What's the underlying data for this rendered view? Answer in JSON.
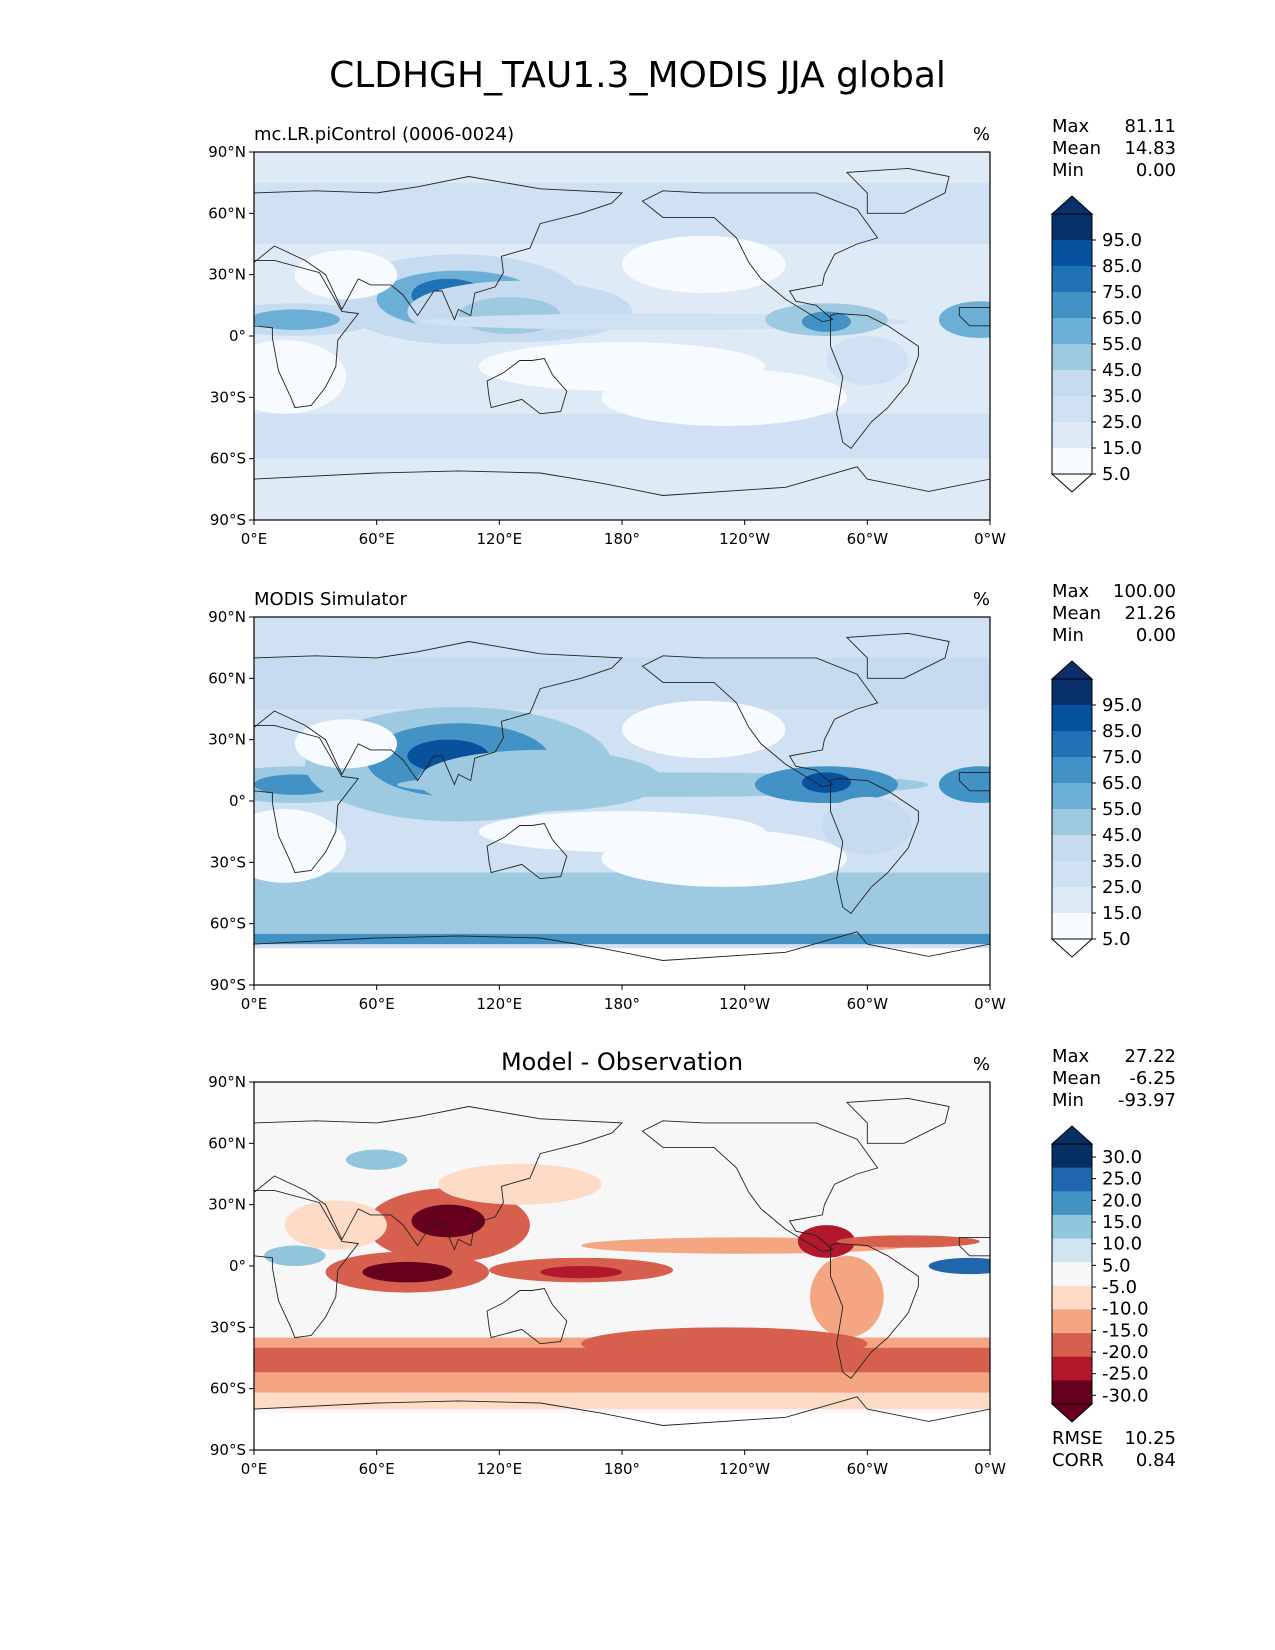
{
  "title": "CLDHGH_TAU1.3_MODIS JJA global",
  "colors": {
    "blues": [
      "#f7fbff",
      "#deebf7",
      "#cfe1f2",
      "#c6dbef",
      "#9ecae1",
      "#6baed6",
      "#4292c6",
      "#2171b5",
      "#08519c",
      "#08306b"
    ],
    "diff": [
      "#67001f",
      "#b2182b",
      "#d6604d",
      "#f4a582",
      "#fddbc7",
      "#f7f7f7",
      "#d1e5f0",
      "#92c5de",
      "#4393c3",
      "#2166ac",
      "#053061"
    ]
  },
  "chart_data": [
    {
      "type": "heatmap",
      "panel_title": "mc.LR.piControl (0006-0024)",
      "units": "%",
      "stats": {
        "max_label": "Max",
        "max": "81.11",
        "mean_label": "Mean",
        "mean": "14.83",
        "min_label": "Min",
        "min": "0.00"
      },
      "colorbar_ticks": [
        "95.0",
        "85.0",
        "75.0",
        "65.0",
        "55.0",
        "45.0",
        "35.0",
        "25.0",
        "15.0",
        "5.0"
      ],
      "x_ticks": [
        "0°E",
        "60°E",
        "120°E",
        "180°",
        "120°W",
        "60°W",
        "0°W"
      ],
      "y_ticks": [
        "90°N",
        "60°N",
        "30°N",
        "0°",
        "30°S",
        "60°S",
        "90°S"
      ],
      "xlim": [
        0,
        360
      ],
      "ylim": [
        -90,
        90
      ]
    },
    {
      "type": "heatmap",
      "panel_title": "MODIS Simulator",
      "units": "%",
      "stats": {
        "max_label": "Max",
        "max": "100.00",
        "mean_label": "Mean",
        "mean": "21.26",
        "min_label": "Min",
        "min": "0.00"
      },
      "colorbar_ticks": [
        "95.0",
        "85.0",
        "75.0",
        "65.0",
        "55.0",
        "45.0",
        "35.0",
        "25.0",
        "15.0",
        "5.0"
      ],
      "x_ticks": [
        "0°E",
        "60°E",
        "120°E",
        "180°",
        "120°W",
        "60°W",
        "0°W"
      ],
      "y_ticks": [
        "90°N",
        "60°N",
        "30°N",
        "0°",
        "30°S",
        "60°S",
        "90°S"
      ],
      "xlim": [
        0,
        360
      ],
      "ylim": [
        -90,
        90
      ]
    },
    {
      "type": "heatmap",
      "panel_title": "Model - Observation",
      "units": "%",
      "stats": {
        "max_label": "Max",
        "max": "27.22",
        "mean_label": "Mean",
        "mean": "-6.25",
        "min_label": "Min",
        "min": "-93.97"
      },
      "colorbar_ticks": [
        "30.0",
        "25.0",
        "20.0",
        "15.0",
        "10.0",
        "5.0",
        "-5.0",
        "-10.0",
        "-15.0",
        "-20.0",
        "-25.0",
        "-30.0"
      ],
      "metrics": {
        "rmse_label": "RMSE",
        "rmse": "10.25",
        "corr_label": "CORR",
        "corr": "0.84"
      },
      "x_ticks": [
        "0°E",
        "60°E",
        "120°E",
        "180°",
        "120°W",
        "60°W",
        "0°W"
      ],
      "y_ticks": [
        "90°N",
        "60°N",
        "30°N",
        "0°",
        "30°S",
        "60°S",
        "90°S"
      ],
      "xlim": [
        0,
        360
      ],
      "ylim": [
        -90,
        90
      ]
    }
  ]
}
